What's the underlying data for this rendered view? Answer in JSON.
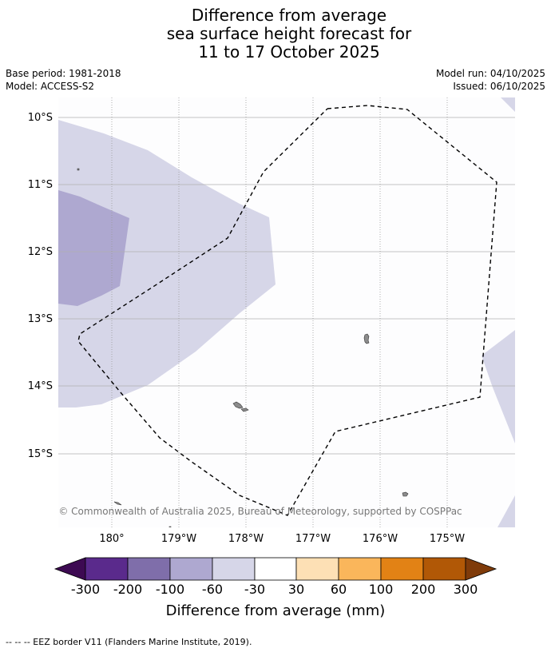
{
  "title_lines": [
    "Difference from average",
    "sea surface height forecast for",
    "11 to 17 October 2025"
  ],
  "base_period": "Base period: 1981-2018",
  "model": "Model: ACCESS-S2",
  "model_run": "Model run: 04/10/2025",
  "issued": "Issued: 06/10/2025",
  "copyright": "© Commonwealth of Australia 2025, Bureau of Meteorology, supported by COSPPac",
  "latitude_labels": [
    "10°S",
    "11°S",
    "12°S",
    "13°S",
    "14°S",
    "15°S"
  ],
  "longitude_labels": [
    "180°",
    "179°W",
    "178°W",
    "177°W",
    "176°W",
    "175°W"
  ],
  "colorbar": {
    "label": "Difference from average (mm)",
    "tick_labels": [
      "-300",
      "-200",
      "-100",
      "-60",
      "-30",
      "30",
      "60",
      "100",
      "200",
      "300"
    ],
    "colors": [
      "#3d0a52",
      "#5a2a8c",
      "#7f6eaa",
      "#aea8d0",
      "#d6d6e8",
      "#ffffff",
      "#fde0b5",
      "#fab65b",
      "#e28215",
      "#b15806",
      "#7f3b0a"
    ]
  },
  "legend_eez": "--  --  -- EEZ border V11 (Flanders Marine Institute, 2019).",
  "colors": {
    "anomaly_light": "#d6d6e8",
    "anomaly_medium": "#aea8d0",
    "land": "#8c8c8c",
    "grid": "#b0b0b0"
  }
}
